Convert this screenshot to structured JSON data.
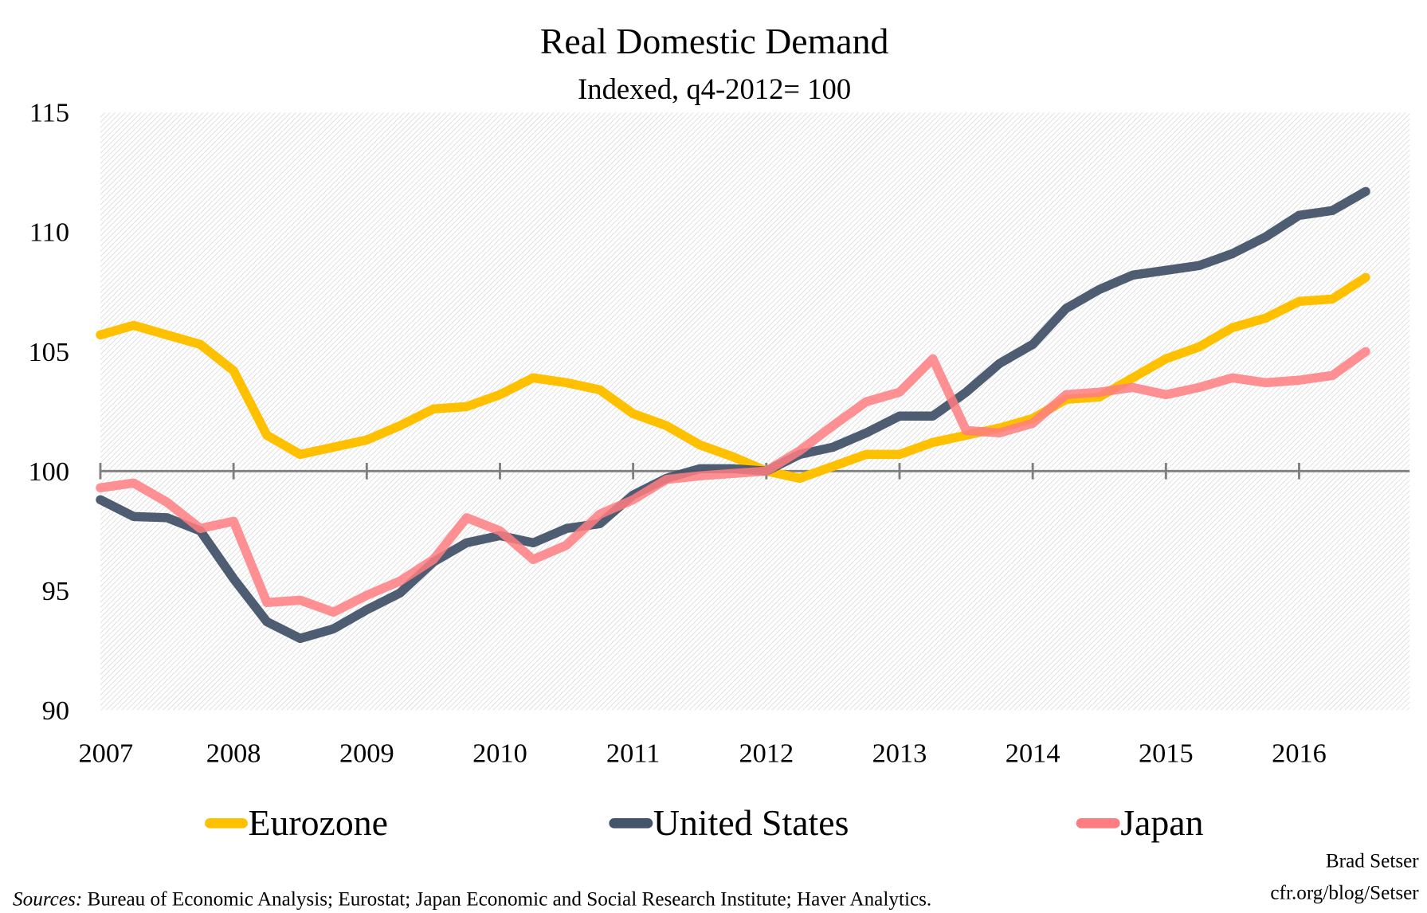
{
  "chart_data": {
    "type": "line",
    "title": "Real Domestic Demand",
    "subtitle": "Indexed, q4-2012= 100",
    "xlabel": "",
    "ylabel": "",
    "ylim": [
      90,
      115
    ],
    "xlim": [
      2007,
      2016.83
    ],
    "y_ticks": [
      "90",
      "95",
      "100",
      "105",
      "110",
      "115"
    ],
    "x_ticks": [
      "2007",
      "2008",
      "2009",
      "2010",
      "2011",
      "2012",
      "2013",
      "2014",
      "2015",
      "2016"
    ],
    "grid": false,
    "reference_line": 100,
    "background": "diagonal hatch",
    "legend_position": "bottom",
    "x": [
      2007.0,
      2007.25,
      2007.5,
      2007.75,
      2008.0,
      2008.25,
      2008.5,
      2008.75,
      2009.0,
      2009.25,
      2009.5,
      2009.75,
      2010.0,
      2010.25,
      2010.5,
      2010.75,
      2011.0,
      2011.25,
      2011.5,
      2011.75,
      2012.0,
      2012.25,
      2012.5,
      2012.75,
      2013.0,
      2013.25,
      2013.5,
      2013.75,
      2014.0,
      2014.25,
      2014.5,
      2014.75,
      2015.0,
      2015.25,
      2015.5,
      2015.75,
      2016.0,
      2016.25,
      2016.5
    ],
    "series": [
      {
        "name": "Eurozone",
        "color": "#FFC000",
        "values": [
          105.7,
          106.1,
          105.7,
          105.3,
          104.2,
          101.5,
          100.7,
          101.0,
          101.3,
          101.9,
          102.6,
          102.7,
          103.2,
          103.9,
          103.7,
          103.4,
          102.4,
          101.9,
          101.1,
          100.6,
          100.0,
          99.7,
          100.2,
          100.7,
          100.7,
          101.2,
          101.5,
          101.8,
          102.2,
          103.0,
          103.1,
          103.9,
          104.7,
          105.2,
          106.0,
          106.4,
          107.1,
          107.2,
          108.1
        ]
      },
      {
        "name": "United States",
        "color": "#44546A",
        "values": [
          98.8,
          98.1,
          98.05,
          97.5,
          95.5,
          93.7,
          93.0,
          93.4,
          94.2,
          94.9,
          96.2,
          97.0,
          97.3,
          97.0,
          97.6,
          97.8,
          99.0,
          99.7,
          100.1,
          100.1,
          100.0,
          100.7,
          101.0,
          101.6,
          102.3,
          102.3,
          103.3,
          104.5,
          105.3,
          106.8,
          107.6,
          108.2,
          108.4,
          108.6,
          109.1,
          109.8,
          110.7,
          110.9,
          111.7
        ]
      },
      {
        "name": "Japan",
        "color": "#FF7C80",
        "values": [
          99.3,
          99.5,
          98.7,
          97.6,
          97.9,
          94.5,
          94.6,
          94.1,
          94.8,
          95.4,
          96.3,
          98.05,
          97.5,
          96.3,
          96.9,
          98.2,
          98.8,
          99.65,
          99.8,
          99.9,
          100.0,
          100.85,
          101.9,
          102.9,
          103.3,
          104.7,
          101.7,
          101.6,
          102.0,
          103.2,
          103.3,
          103.5,
          103.2,
          103.5,
          103.9,
          103.7,
          103.8,
          104.0,
          105.0
        ]
      }
    ]
  },
  "footer": {
    "sources_label": "Sources:",
    "sources_text": " Bureau of Economic Analysis; Eurostat; Japan Economic and Social Research Institute; Haver Analytics.",
    "author": "Brad Setser",
    "url": "cfr.org/blog/Setser"
  }
}
